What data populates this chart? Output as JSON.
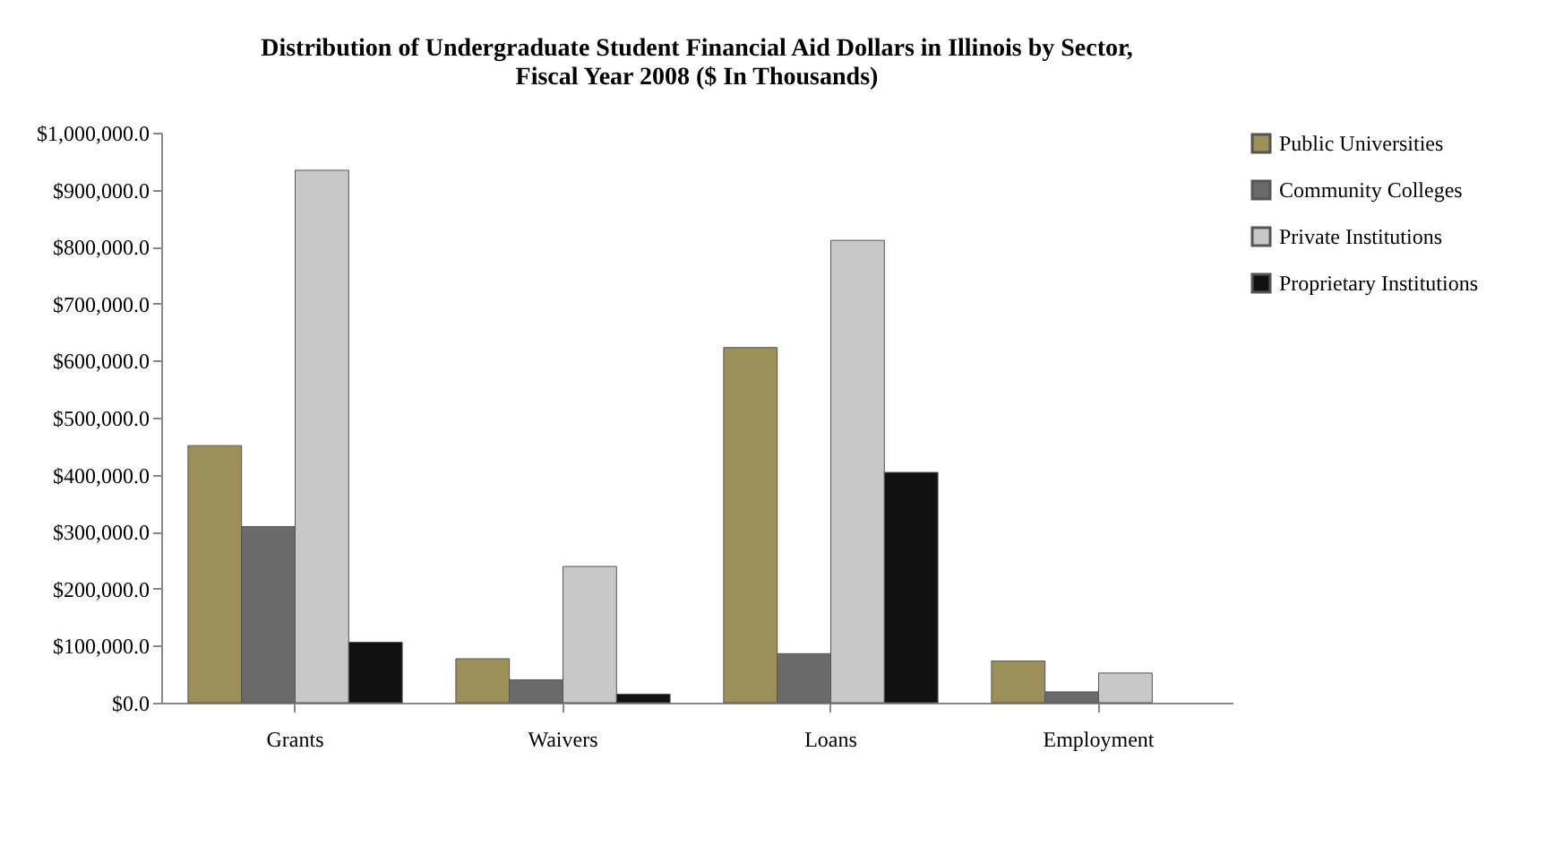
{
  "chart_data": {
    "type": "bar",
    "title": "Distribution of Undergraduate Student Financial Aid Dollars in Illinois by Sector,\nFiscal Year 2008 ($ In Thousands)",
    "categories": [
      "Grants",
      "Waivers",
      "Loans",
      "Employment"
    ],
    "series": [
      {
        "name": "Public Universities",
        "color": "#9b9158",
        "values": [
          451000,
          77000,
          623000,
          73000
        ]
      },
      {
        "name": "Community Colleges",
        "color": "#6a6a6a",
        "values": [
          309000,
          40000,
          86000,
          19000
        ]
      },
      {
        "name": "Private Institutions",
        "color": "#c8c8c8",
        "values": [
          934000,
          239000,
          811000,
          52000
        ]
      },
      {
        "name": "Proprietary Institutions",
        "color": "#111111",
        "values": [
          106000,
          15000,
          404000,
          null
        ]
      }
    ],
    "ylim": [
      0,
      1000000
    ],
    "yticks": [
      {
        "value": 0,
        "label": "$0.0"
      },
      {
        "value": 100000,
        "label": "$100,000.0"
      },
      {
        "value": 200000,
        "label": "$200,000.0"
      },
      {
        "value": 300000,
        "label": "$300,000.0"
      },
      {
        "value": 400000,
        "label": "$400,000.0"
      },
      {
        "value": 500000,
        "label": "$500,000.0"
      },
      {
        "value": 600000,
        "label": "$600,000.0"
      },
      {
        "value": 700000,
        "label": "$700,000.0"
      },
      {
        "value": 800000,
        "label": "$800,000.0"
      },
      {
        "value": 900000,
        "label": "$900,000.0"
      },
      {
        "value": 1000000,
        "label": "$1,000,000.0"
      }
    ],
    "grid": false,
    "legend": "right"
  }
}
